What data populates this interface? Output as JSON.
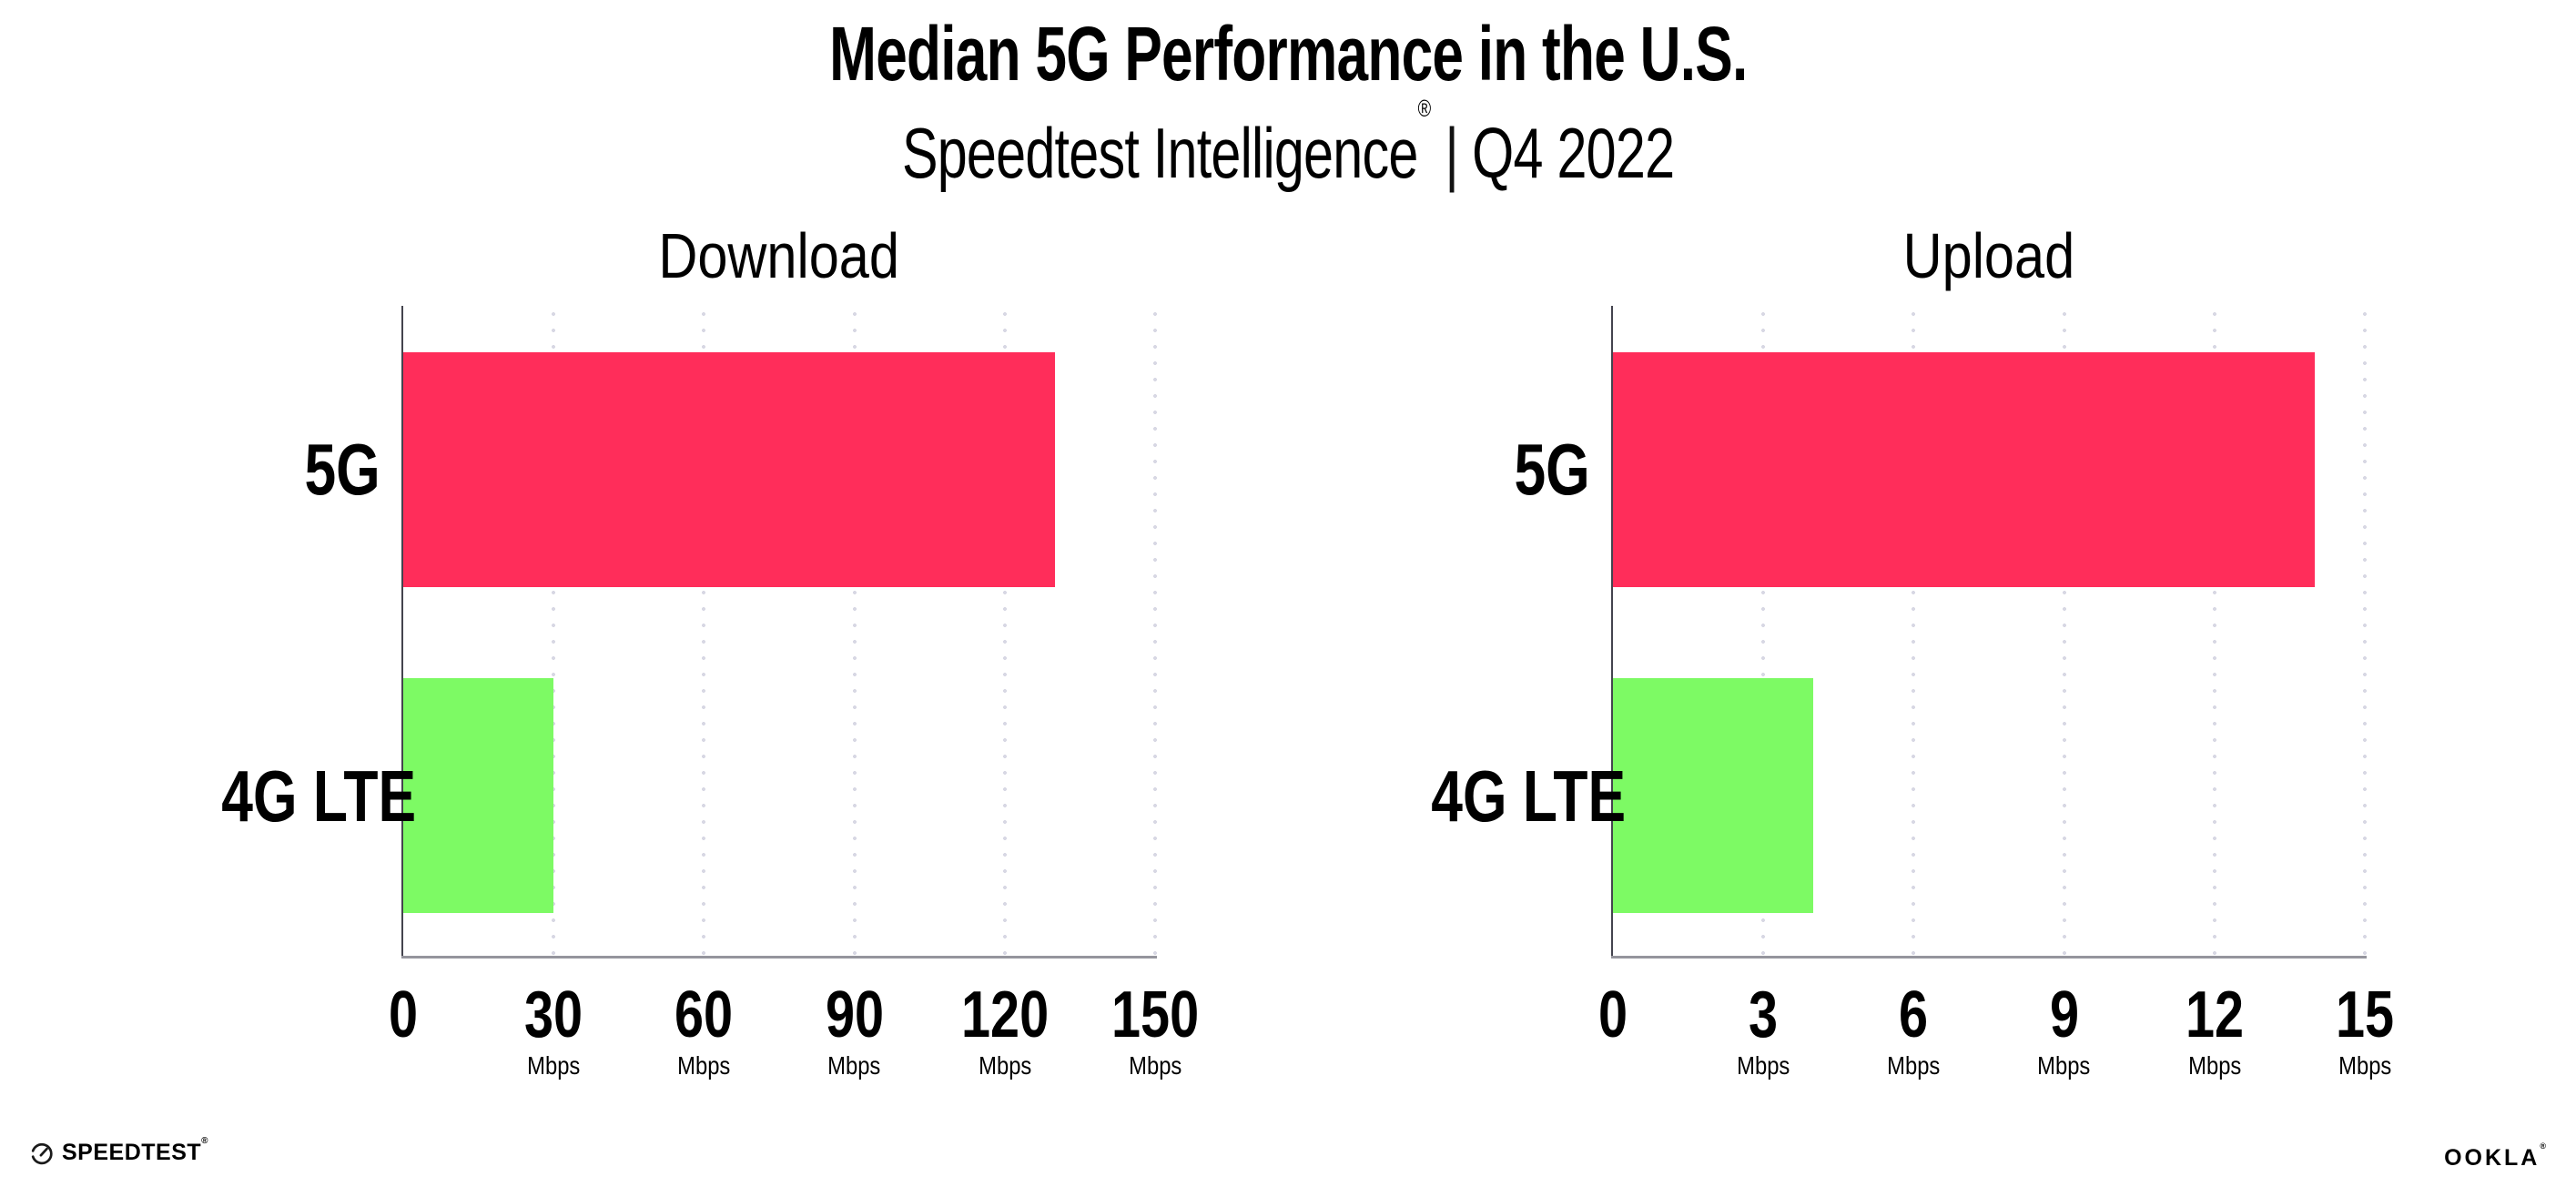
{
  "header": {
    "title": "Median 5G Performance in the U.S.",
    "subtitle_brand": "Speedtest Intelligence",
    "registered_mark": "®",
    "subtitle_separator": "|",
    "subtitle_period": "Q4 2022"
  },
  "chart_data": [
    {
      "id": "download",
      "type": "bar",
      "orientation": "horizontal",
      "title": "Download",
      "categories": [
        "5G",
        "4G LTE"
      ],
      "values": [
        130,
        30
      ],
      "unit": "Mbps",
      "xlim": [
        0,
        150
      ],
      "xticks": [
        0,
        30,
        60,
        90,
        120,
        150
      ],
      "grid": "vertical-dotted",
      "legend": "none",
      "bar_colors": [
        "#FF2D5A",
        "#7DFA64"
      ]
    },
    {
      "id": "upload",
      "type": "bar",
      "orientation": "horizontal",
      "title": "Upload",
      "categories": [
        "5G",
        "4G LTE"
      ],
      "values": [
        14,
        4
      ],
      "unit": "Mbps",
      "xlim": [
        0,
        15
      ],
      "xticks": [
        0,
        3,
        6,
        9,
        12,
        15
      ],
      "grid": "vertical-dotted",
      "legend": "none",
      "bar_colors": [
        "#FF2D5A",
        "#7DFA64"
      ]
    }
  ],
  "style": {
    "bar_color_5g": "#FF2D5A",
    "bar_color_4g_lte": "#7DFA64",
    "gridline_color": "#D8D8E4",
    "x_axis_color": "#95959D",
    "y_axis_color": "#44444E",
    "background": "#FFFFFF",
    "text_color": "#000000"
  },
  "footer": {
    "speedtest_icon": "speedtest-gauge-icon",
    "speedtest_label": "SPEEDTEST",
    "speedtest_mark": "®",
    "ookla_label": "OOKLA",
    "ookla_mark": "®"
  }
}
